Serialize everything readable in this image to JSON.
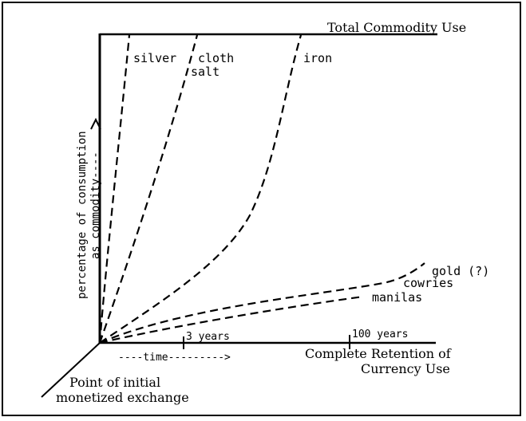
{
  "chart_data": {
    "type": "line",
    "title": "",
    "top_label": "Total Commodity Use",
    "ylabel_line1": "percentage of consumption",
    "ylabel_line2": "as commodity----",
    "x_axis_label": "----time--------->",
    "x_right_label_line1": "Complete Retention of",
    "x_right_label_line2": "Currency Use",
    "origin_label_line1": "Point of initial",
    "origin_label_line2": "monetized exchange",
    "x_ticks": [
      {
        "label": "3 years"
      },
      {
        "label": "100 years"
      }
    ],
    "series": [
      {
        "name": "silver"
      },
      {
        "name": "cloth"
      },
      {
        "name": "salt"
      },
      {
        "name": "iron"
      },
      {
        "name": "gold (?)"
      },
      {
        "name": "cowries"
      },
      {
        "name": "manilas"
      }
    ],
    "line_style": "dashed",
    "grid": false,
    "legend": "none"
  }
}
